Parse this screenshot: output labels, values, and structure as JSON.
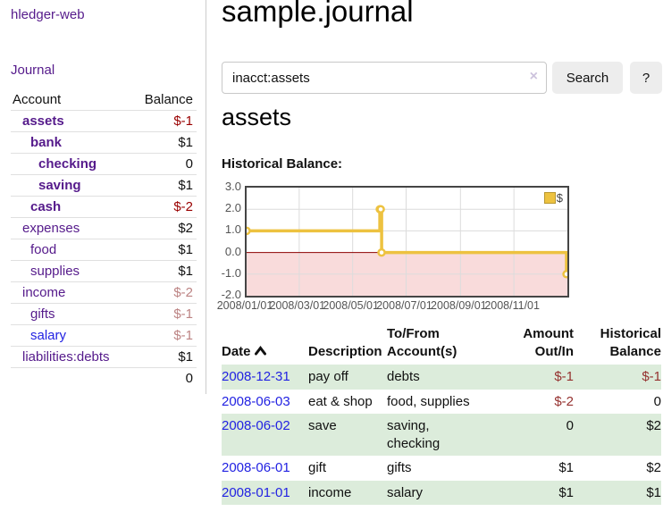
{
  "app": {
    "brand": "hledger-web",
    "nav_journal": "Journal"
  },
  "sidebar": {
    "account_header": "Account",
    "balance_header": "Balance",
    "accounts": [
      {
        "name": "assets",
        "balance": "$-1",
        "level": 1,
        "bold": true,
        "amount_style": "neg-strong",
        "link_style": "purple"
      },
      {
        "name": "bank",
        "balance": "$1",
        "level": 2,
        "bold": true,
        "amount_style": "normal",
        "link_style": "purple"
      },
      {
        "name": "checking",
        "balance": "0",
        "level": 3,
        "bold": true,
        "amount_style": "normal",
        "link_style": "purple"
      },
      {
        "name": "saving",
        "balance": "$1",
        "level": 3,
        "bold": true,
        "amount_style": "normal",
        "link_style": "purple"
      },
      {
        "name": "cash",
        "balance": "$-2",
        "level": 2,
        "bold": true,
        "amount_style": "neg-strong",
        "link_style": "purple"
      },
      {
        "name": "expenses",
        "balance": "$2",
        "level": 1,
        "bold": false,
        "amount_style": "normal",
        "link_style": "purple"
      },
      {
        "name": "food",
        "balance": "$1",
        "level": 2,
        "bold": false,
        "amount_style": "normal",
        "link_style": "purple"
      },
      {
        "name": "supplies",
        "balance": "$1",
        "level": 2,
        "bold": false,
        "amount_style": "normal",
        "link_style": "purple"
      },
      {
        "name": "income",
        "balance": "$-2",
        "level": 1,
        "bold": false,
        "amount_style": "neg-dim",
        "link_style": "purple"
      },
      {
        "name": "gifts",
        "balance": "$-1",
        "level": 2,
        "bold": false,
        "amount_style": "neg-dim",
        "link_style": "purple"
      },
      {
        "name": "salary",
        "balance": "$-1",
        "level": 2,
        "bold": false,
        "amount_style": "neg-dim",
        "link_style": "blue"
      },
      {
        "name": "liabilities:debts",
        "balance": "$1",
        "level": 1,
        "bold": false,
        "amount_style": "normal",
        "link_style": "purple"
      }
    ],
    "total": "0"
  },
  "main": {
    "title": "sample.journal",
    "search": {
      "value": "inacct:assets",
      "clear": "×",
      "search_button": "Search",
      "help_button": "?"
    },
    "heading": "assets",
    "chart_title": "Historical Balance:"
  },
  "chart_data": {
    "type": "line",
    "step": true,
    "title": "Historical Balance:",
    "legend": [
      {
        "label": "$",
        "color": "#edc240"
      }
    ],
    "series": [
      {
        "name": "$",
        "color": "#edc240",
        "points": [
          {
            "date": "2008-01-01",
            "value": 1
          },
          {
            "date": "2008-06-01",
            "value": 2
          },
          {
            "date": "2008-06-02",
            "value": 2
          },
          {
            "date": "2008-06-03",
            "value": 0
          },
          {
            "date": "2008-12-31",
            "value": -1
          }
        ]
      }
    ],
    "x_range": [
      "2008-01-01",
      "2009-01-01"
    ],
    "x_ticks": [
      {
        "date": "2008-01-01",
        "label": "2008/01/01"
      },
      {
        "date": "2008-03-01",
        "label": "2008/03/01"
      },
      {
        "date": "2008-05-01",
        "label": "2008/05/01"
      },
      {
        "date": "2008-07-01",
        "label": "2008/07/01"
      },
      {
        "date": "2008-09-01",
        "label": "2008/09/01"
      },
      {
        "date": "2008-11-01",
        "label": "2008/11/01"
      }
    ],
    "y_ticks": [
      {
        "value": 3,
        "label": "3.0"
      },
      {
        "value": 2,
        "label": "2.0"
      },
      {
        "value": 1,
        "label": "1.0"
      },
      {
        "value": 0,
        "label": "0.0"
      },
      {
        "value": -1,
        "label": "-1.0"
      },
      {
        "value": -2,
        "label": "-2.0"
      }
    ],
    "ylim": [
      -2,
      3
    ],
    "grid": true,
    "legend_position": "top-right",
    "negative_region_color": "#f9dbdb",
    "zero_line_color": "#8b0000",
    "grid_color": "#dcdcdc",
    "border_color": "#454545"
  },
  "register": {
    "headers": {
      "date": "Date",
      "description": "Description",
      "accounts": "To/From Account(s)",
      "amount": "Amount Out/In",
      "balance": "Historical Balance"
    },
    "rows": [
      {
        "date": "2008-12-31",
        "description": "pay off",
        "accounts": "debts",
        "amount": "$-1",
        "amount_negative": true,
        "balance": "$-1",
        "balance_negative": true,
        "striped": true
      },
      {
        "date": "2008-06-03",
        "description": "eat & shop",
        "accounts": "food, supplies",
        "amount": "$-2",
        "amount_negative": true,
        "balance": "0",
        "balance_negative": false,
        "striped": false
      },
      {
        "date": "2008-06-02",
        "description": "save",
        "accounts": "saving, checking",
        "amount": "0",
        "amount_negative": false,
        "balance": "$2",
        "balance_negative": false,
        "striped": true
      },
      {
        "date": "2008-06-01",
        "description": "gift",
        "accounts": "gifts",
        "amount": "$1",
        "amount_negative": false,
        "balance": "$2",
        "balance_negative": false,
        "striped": false
      },
      {
        "date": "2008-01-01",
        "description": "income",
        "accounts": "salary",
        "amount": "$1",
        "amount_negative": false,
        "balance": "$1",
        "balance_negative": false,
        "striped": true
      }
    ]
  },
  "colors": {
    "link_purple": "#551a8b",
    "link_blue": "#2222e2",
    "negative_strong": "#990000",
    "negative_dim": "#bc8383",
    "negative_table": "#95312f",
    "row_stripe_green": "#dcecdb",
    "series_yellow": "#edc240"
  }
}
